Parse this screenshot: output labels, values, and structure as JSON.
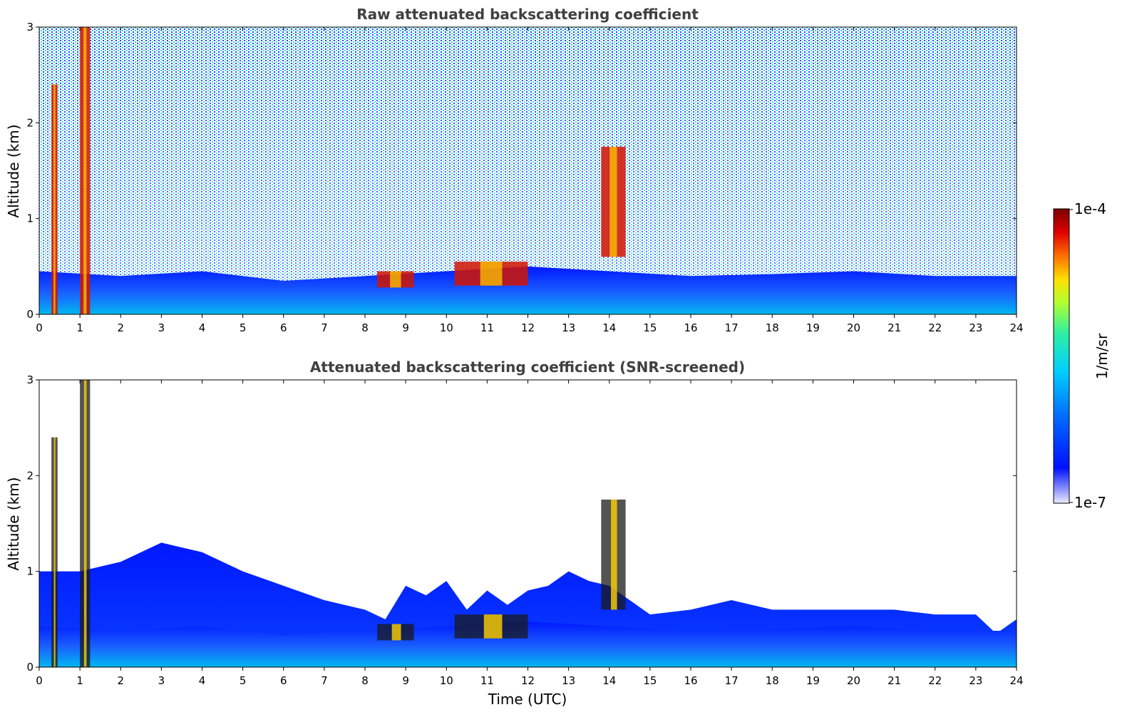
{
  "chart_data": [
    {
      "type": "heatmap",
      "title": "Raw attenuated backscattering coefficient",
      "xlabel": "",
      "ylabel": "Altitude (km)",
      "xlim": [
        0,
        24
      ],
      "ylim": [
        0,
        3
      ],
      "xticks": [
        "0",
        "1",
        "2",
        "3",
        "4",
        "5",
        "6",
        "7",
        "8",
        "9",
        "10",
        "11",
        "12",
        "13",
        "14",
        "15",
        "16",
        "17",
        "18",
        "19",
        "20",
        "21",
        "22",
        "23",
        "24"
      ],
      "yticks": [
        "0",
        "1",
        "2",
        "3"
      ],
      "features": [
        {
          "kind": "aerosol_layer",
          "x": [
            0,
            24
          ],
          "top_km": [
            0.45,
            0.4,
            0.45,
            0.35,
            0.4,
            0.45,
            0.5,
            0.45,
            0.4,
            0.42,
            0.45,
            0.4,
            0.4
          ]
        },
        {
          "kind": "cloud",
          "x": [
            0.3,
            0.45
          ],
          "y": [
            0,
            2.4
          ]
        },
        {
          "kind": "cloud",
          "x": [
            1.0,
            1.25
          ],
          "y": [
            0,
            3.0
          ]
        },
        {
          "kind": "cloud",
          "x": [
            8.3,
            9.2
          ],
          "y": [
            0.28,
            0.45
          ]
        },
        {
          "kind": "cloud",
          "x": [
            10.2,
            12.0
          ],
          "y": [
            0.3,
            0.55
          ]
        },
        {
          "kind": "cloud",
          "x": [
            13.8,
            14.4
          ],
          "y": [
            0.6,
            1.75
          ]
        }
      ]
    },
    {
      "type": "heatmap",
      "title": "Attenuated backscattering coefficient (SNR-screened)",
      "xlabel": "Time (UTC)",
      "ylabel": "Altitude (km)",
      "xlim": [
        0,
        24
      ],
      "ylim": [
        0,
        3
      ],
      "xticks": [
        "0",
        "1",
        "2",
        "3",
        "4",
        "5",
        "6",
        "7",
        "8",
        "9",
        "10",
        "11",
        "12",
        "13",
        "14",
        "15",
        "16",
        "17",
        "18",
        "19",
        "20",
        "21",
        "22",
        "23",
        "24"
      ],
      "yticks": [
        "0",
        "1",
        "2",
        "3"
      ],
      "screened_top_km": {
        "x": [
          0,
          1,
          2,
          3,
          4,
          5,
          6,
          7,
          8,
          8.5,
          9,
          9.5,
          10,
          10.5,
          11,
          11.5,
          12,
          12.5,
          13,
          13.5,
          14,
          14.5,
          15,
          16,
          17,
          18,
          19,
          20,
          21,
          22,
          23,
          23.5,
          24
        ],
        "y": [
          1.0,
          1.0,
          1.1,
          1.3,
          1.2,
          1.0,
          0.85,
          0.7,
          0.6,
          0.5,
          0.85,
          0.75,
          0.9,
          0.6,
          0.8,
          0.65,
          0.8,
          0.85,
          1.0,
          0.9,
          0.85,
          0.7,
          0.55,
          0.6,
          0.7,
          0.6,
          0.6,
          0.6,
          0.6,
          0.55,
          0.55,
          0.35,
          0.5
        ]
      }
    }
  ],
  "colorbar": {
    "max_label": "1e-4",
    "min_label": "1e-7",
    "units": "1/m/sr",
    "colors": [
      "#e8e8ff",
      "#0010ff",
      "#0080ff",
      "#00d8ff",
      "#40ffb0",
      "#c8ff30",
      "#ffd000",
      "#ff6000",
      "#e00000",
      "#800000"
    ]
  }
}
